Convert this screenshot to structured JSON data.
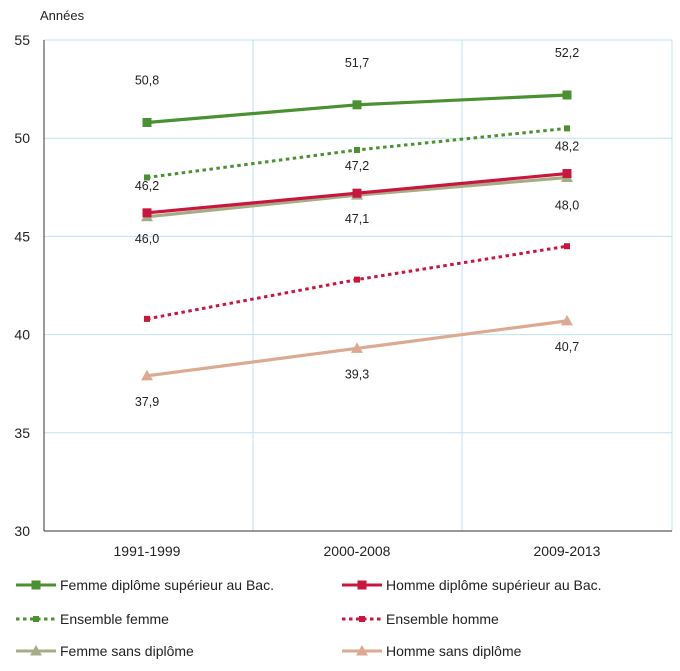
{
  "chart_data": {
    "type": "line",
    "ylabel": "Années",
    "ylim": [
      30,
      55
    ],
    "yticks": [
      "30",
      "35",
      "40",
      "45",
      "50",
      "55"
    ],
    "categories": [
      "1991-1999",
      "2000-2008",
      "2009-2013"
    ],
    "grid": true,
    "legend_placement": "bottom",
    "series": [
      {
        "name": "Femme diplôme supérieur au Bac.",
        "values": [
          50.8,
          51.7,
          52.2
        ],
        "labels": [
          "50,8",
          "51,7",
          "52,2"
        ],
        "color": "#4a9131",
        "style": "solid",
        "marker": "square"
      },
      {
        "name": "Homme diplôme supérieur au Bac.",
        "values": [
          46.2,
          47.2,
          48.2
        ],
        "labels": [
          "46,2",
          "47,2",
          "48,2"
        ],
        "color": "#c8163e",
        "style": "solid",
        "marker": "square"
      },
      {
        "name": "Ensemble femme",
        "values": [
          48.0,
          49.4,
          50.5
        ],
        "color": "#4a9131",
        "style": "dotted",
        "marker": "none"
      },
      {
        "name": "Ensemble homme",
        "values": [
          40.8,
          42.8,
          44.5
        ],
        "color": "#c8163e",
        "style": "dotted",
        "marker": "none"
      },
      {
        "name": "Femme sans diplôme",
        "values": [
          46.0,
          47.1,
          48.0
        ],
        "labels": [
          "46,0",
          "47,1",
          "48,0"
        ],
        "color": "#a6ac86",
        "style": "solid",
        "marker": "triangle"
      },
      {
        "name": "Homme sans diplôme",
        "values": [
          37.9,
          39.3,
          40.7
        ],
        "labels": [
          "37,9",
          "39,3",
          "40,7"
        ],
        "color": "#dca993",
        "style": "solid",
        "marker": "triangle"
      }
    ]
  }
}
